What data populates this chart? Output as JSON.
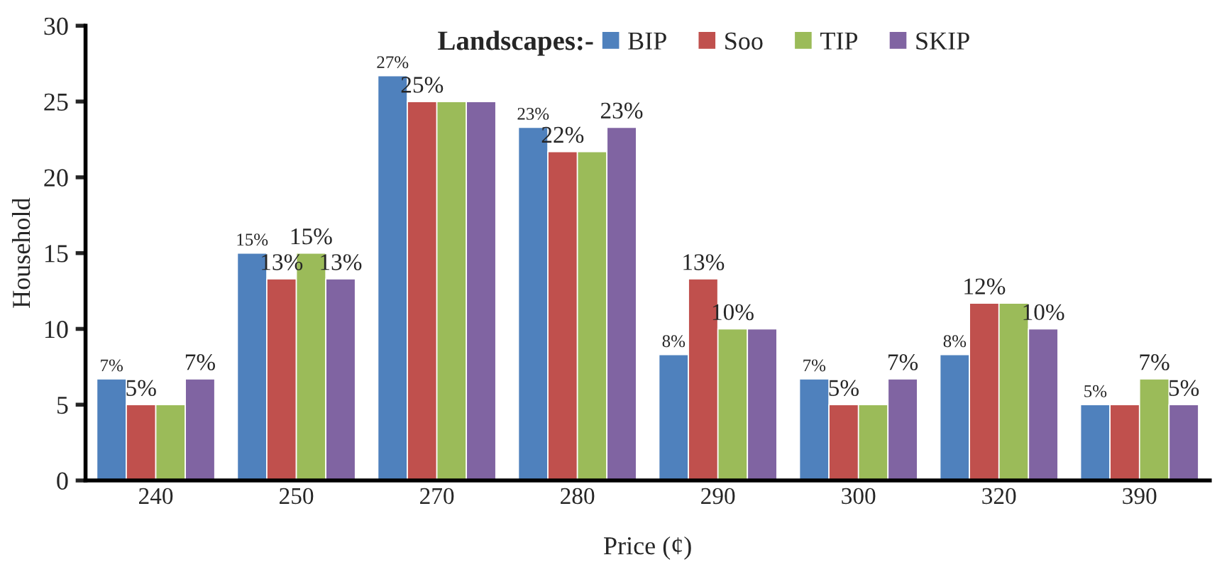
{
  "chart_data": {
    "type": "bar",
    "xlabel": "Price (¢)",
    "ylabel": "Household",
    "legend_title": "Landscapes:-",
    "legend": "top",
    "grid": false,
    "categories": [
      "240",
      "250",
      "270",
      "280",
      "290",
      "300",
      "320",
      "390"
    ],
    "ylim": [
      0,
      30
    ],
    "yticks": [
      0,
      5,
      10,
      15,
      20,
      25,
      30
    ],
    "series": [
      {
        "name": "BIP",
        "color": "#4f81bd",
        "values": [
          6.7,
          15,
          26.7,
          23.3,
          8.3,
          6.7,
          8.3,
          5
        ],
        "value_labels": [
          "7%",
          "15%",
          "27%",
          "23%",
          "8%",
          "7%",
          "8%",
          "5%"
        ]
      },
      {
        "name": "Soo",
        "color": "#c0504d",
        "values": [
          5,
          13.3,
          25,
          21.7,
          13.3,
          5,
          11.7,
          5
        ],
        "value_labels": [
          "5%",
          "13%",
          "25%",
          "22%",
          "13%",
          "5%",
          "12%",
          null
        ]
      },
      {
        "name": "TIP",
        "color": "#9bbb59",
        "values": [
          5,
          15,
          25,
          21.7,
          10,
          5,
          11.7,
          6.7
        ],
        "value_labels": [
          null,
          "15%",
          null,
          null,
          "10%",
          null,
          null,
          "7%"
        ]
      },
      {
        "name": "SKIP",
        "color": "#8064a2",
        "values": [
          6.7,
          13.3,
          25,
          23.3,
          10,
          6.7,
          10,
          5
        ],
        "value_labels": [
          "7%",
          "13%",
          null,
          "23%",
          null,
          "7%",
          "10%",
          "5%"
        ]
      }
    ]
  }
}
